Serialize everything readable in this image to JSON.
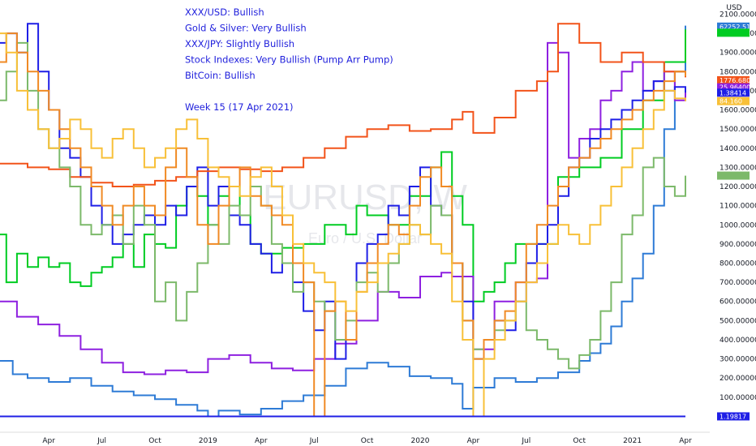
{
  "chart_data": {
    "type": "line",
    "title": "",
    "xlabel": "",
    "ylabel": "",
    "currency": "USD",
    "watermark": {
      "main": "EURUSD, W",
      "sub": "Euro / U.S. Dollar"
    },
    "ylim": [
      -70,
      2140
    ],
    "yticks": [
      "2100.00000",
      "2000.000000",
      "1900.000000",
      "1800.000000",
      "1700.000000",
      "1600.000000",
      "1500.000000",
      "1400.000000",
      "1300.000000",
      "1200.000000",
      "1100.000000",
      "1000.000000",
      "900.000000",
      "800.000000",
      "700.000000",
      "600.000000",
      "500.000000",
      "400.000000",
      "300.000000",
      "200.000000",
      "100.000000"
    ],
    "ytick_values": [
      2100,
      2000,
      1900,
      1800,
      1700,
      1600,
      1500,
      1400,
      1300,
      1200,
      1100,
      1000,
      900,
      800,
      700,
      600,
      500,
      400,
      300,
      200,
      100
    ],
    "xticks": [
      {
        "label": "Apr",
        "t": 0.5
      },
      {
        "label": "Jul",
        "t": 0.75
      },
      {
        "label": "Oct",
        "t": 1.0
      },
      {
        "label": "2019",
        "t": 1.25
      },
      {
        "label": "Apr",
        "t": 1.5
      },
      {
        "label": "Jul",
        "t": 1.75
      },
      {
        "label": "Oct",
        "t": 2.0
      },
      {
        "label": "2020",
        "t": 2.25
      },
      {
        "label": "Apr",
        "t": 2.5
      },
      {
        "label": "Jul",
        "t": 2.75
      },
      {
        "label": "Oct",
        "t": 3.0
      },
      {
        "label": "2021",
        "t": 3.25
      },
      {
        "label": "Apr",
        "t": 3.5
      }
    ],
    "xlim": [
      0.27,
      3.5
    ],
    "annotations": [
      "XXX/USD: Bullish",
      "Gold & Silver: Very Bullish",
      "XXX/JPY: Slightly Bullish",
      "Stock Indexes:  Very Bullish (Pump Arr Pump)",
      "BitCoin: Bullish",
      "",
      "Week 15 (17 Apr 2021)"
    ],
    "price_badges": [
      {
        "label": "62252.51",
        "color": "#2e7bd6",
        "value": 2035
      },
      {
        "label": "",
        "color": "#00cc22",
        "value": 2003
      },
      {
        "label": "1776.68000",
        "color": "#f2531a",
        "value": 1755
      },
      {
        "label": "25.96400",
        "color": "#8e20e0",
        "value": 1718
      },
      {
        "label": "1.38414",
        "color": "#1f1fe6",
        "value": 1690
      },
      {
        "label": "84.160",
        "color": "#f8c038",
        "value": 1646
      },
      {
        "label": "",
        "color": "#7cb96a",
        "value": 1257
      },
      {
        "label": "1.19817",
        "color": "#1f1fe6",
        "value": 0
      }
    ],
    "series": [
      {
        "color": "#2e7bd6",
        "x": [
          0.27,
          0.33,
          0.4,
          0.5,
          0.6,
          0.7,
          0.8,
          0.9,
          1.0,
          1.1,
          1.2,
          1.25,
          1.3,
          1.4,
          1.5,
          1.6,
          1.7,
          1.8,
          1.9,
          2.0,
          2.1,
          2.2,
          2.3,
          2.4,
          2.45,
          2.5,
          2.6,
          2.7,
          2.8,
          2.9,
          3.0,
          3.05,
          3.1,
          3.15,
          3.2,
          3.25,
          3.3,
          3.35,
          3.4,
          3.45,
          3.5
        ],
        "y": [
          290,
          220,
          200,
          180,
          200,
          160,
          130,
          110,
          90,
          60,
          30,
          0,
          30,
          10,
          40,
          80,
          110,
          160,
          250,
          280,
          260,
          210,
          200,
          170,
          40,
          150,
          200,
          180,
          200,
          230,
          290,
          330,
          380,
          470,
          600,
          720,
          850,
          1100,
          1500,
          1800,
          2040
        ]
      },
      {
        "color": "#00cc22",
        "x": [
          0.27,
          0.3,
          0.35,
          0.4,
          0.45,
          0.5,
          0.55,
          0.6,
          0.65,
          0.7,
          0.75,
          0.8,
          0.85,
          0.9,
          0.95,
          1.0,
          1.05,
          1.1,
          1.15,
          1.2,
          1.25,
          1.3,
          1.35,
          1.4,
          1.45,
          1.5,
          1.6,
          1.7,
          1.8,
          1.9,
          1.95,
          2.0,
          2.1,
          2.2,
          2.3,
          2.35,
          2.4,
          2.45,
          2.5,
          2.55,
          2.6,
          2.65,
          2.7,
          2.8,
          2.9,
          3.0,
          3.1,
          3.2,
          3.3,
          3.4,
          3.5
        ],
        "y": [
          950,
          700,
          850,
          780,
          830,
          780,
          800,
          700,
          680,
          750,
          780,
          830,
          900,
          780,
          950,
          900,
          880,
          1100,
          1200,
          1150,
          1000,
          1150,
          1200,
          1050,
          900,
          850,
          880,
          900,
          1000,
          950,
          1100,
          1050,
          1000,
          1150,
          1300,
          1380,
          1150,
          1000,
          600,
          650,
          700,
          800,
          900,
          900,
          1250,
          1300,
          1350,
          1500,
          1650,
          1850,
          2020
        ]
      },
      {
        "color": "#8e20e0",
        "x": [
          0.27,
          0.35,
          0.45,
          0.55,
          0.65,
          0.75,
          0.85,
          0.95,
          1.05,
          1.15,
          1.25,
          1.35,
          1.45,
          1.55,
          1.65,
          1.75,
          1.85,
          1.95,
          2.05,
          2.15,
          2.25,
          2.35,
          2.4,
          2.5,
          2.6,
          2.7,
          2.8,
          2.85,
          2.9,
          2.95,
          3.0,
          3.05,
          3.1,
          3.15,
          3.2,
          3.25,
          3.3,
          3.35,
          3.4,
          3.45,
          3.5
        ],
        "y": [
          600,
          520,
          480,
          420,
          350,
          280,
          230,
          220,
          240,
          230,
          300,
          320,
          280,
          250,
          240,
          300,
          380,
          500,
          650,
          620,
          730,
          750,
          730,
          350,
          600,
          700,
          720,
          1950,
          1900,
          1350,
          1450,
          1500,
          1650,
          1700,
          1800,
          1850,
          1700,
          1750,
          1800,
          1650,
          1700
        ]
      },
      {
        "color": "#1f1fe6",
        "x": [
          0.27,
          0.3,
          0.35,
          0.4,
          0.45,
          0.5,
          0.55,
          0.6,
          0.65,
          0.7,
          0.75,
          0.8,
          0.85,
          0.9,
          0.95,
          1.0,
          1.05,
          1.1,
          1.15,
          1.2,
          1.25,
          1.3,
          1.35,
          1.4,
          1.45,
          1.5,
          1.55,
          1.6,
          1.65,
          1.7,
          1.75,
          1.8,
          1.85,
          1.9,
          1.95,
          2.0,
          2.05,
          2.1,
          2.15,
          2.2,
          2.25,
          2.3,
          2.35,
          2.4,
          2.45,
          2.5,
          2.55,
          2.6,
          2.65,
          2.7,
          2.75,
          2.8,
          2.85,
          2.9,
          2.95,
          3.0,
          3.05,
          3.1,
          3.15,
          3.2,
          3.25,
          3.3,
          3.35,
          3.4,
          3.45,
          3.5
        ],
        "y": [
          1950,
          2000,
          1900,
          2050,
          1800,
          1600,
          1400,
          1350,
          1250,
          1100,
          1000,
          900,
          950,
          1000,
          1050,
          1000,
          1100,
          1050,
          1200,
          1300,
          1100,
          1200,
          1050,
          1000,
          900,
          850,
          750,
          800,
          700,
          550,
          450,
          600,
          300,
          400,
          800,
          900,
          950,
          1100,
          1050,
          1200,
          1300,
          1100,
          1050,
          800,
          600,
          300,
          400,
          500,
          450,
          600,
          800,
          900,
          1000,
          1150,
          1300,
          1350,
          1450,
          1500,
          1550,
          1600,
          1650,
          1700,
          1750,
          1700,
          1720,
          1690
        ]
      },
      {
        "color": "#f2531a",
        "x": [
          0.27,
          0.4,
          0.5,
          0.6,
          0.7,
          0.8,
          0.9,
          1.0,
          1.1,
          1.2,
          1.3,
          1.4,
          1.5,
          1.6,
          1.7,
          1.8,
          1.9,
          2.0,
          2.1,
          2.2,
          2.3,
          2.4,
          2.45,
          2.5,
          2.6,
          2.7,
          2.8,
          2.85,
          2.9,
          3.0,
          3.1,
          3.2,
          3.3,
          3.4,
          3.5
        ],
        "y": [
          1320,
          1300,
          1290,
          1250,
          1220,
          1200,
          1210,
          1230,
          1250,
          1280,
          1300,
          1290,
          1280,
          1300,
          1350,
          1400,
          1460,
          1500,
          1520,
          1490,
          1500,
          1550,
          1590,
          1480,
          1560,
          1700,
          1750,
          1800,
          2050,
          1950,
          1850,
          1900,
          1850,
          1800,
          1770
        ]
      },
      {
        "color": "#7cb96a",
        "x": [
          0.27,
          0.3,
          0.35,
          0.4,
          0.45,
          0.5,
          0.55,
          0.6,
          0.65,
          0.7,
          0.75,
          0.8,
          0.85,
          0.9,
          0.95,
          1.0,
          1.05,
          1.1,
          1.15,
          1.2,
          1.25,
          1.3,
          1.35,
          1.4,
          1.45,
          1.5,
          1.55,
          1.6,
          1.65,
          1.7,
          1.75,
          1.8,
          1.85,
          1.9,
          1.95,
          2.0,
          2.05,
          2.1,
          2.15,
          2.2,
          2.25,
          2.3,
          2.35,
          2.4,
          2.45,
          2.5,
          2.55,
          2.6,
          2.65,
          2.7,
          2.75,
          2.8,
          2.85,
          2.9,
          2.95,
          3.0,
          3.05,
          3.1,
          3.15,
          3.2,
          3.25,
          3.3,
          3.35,
          3.4,
          3.45,
          3.5
        ],
        "y": [
          1650,
          1800,
          1950,
          1700,
          1500,
          1400,
          1300,
          1200,
          1000,
          950,
          1000,
          1050,
          900,
          1100,
          1000,
          600,
          700,
          500,
          650,
          800,
          1000,
          900,
          1100,
          1050,
          1200,
          1100,
          900,
          800,
          650,
          700,
          600,
          550,
          400,
          500,
          700,
          750,
          650,
          800,
          900,
          1000,
          950,
          1100,
          1050,
          800,
          500,
          350,
          400,
          450,
          500,
          600,
          450,
          400,
          350,
          300,
          250,
          320,
          400,
          550,
          700,
          950,
          1050,
          1300,
          1350,
          1200,
          1150,
          1257
        ]
      },
      {
        "color": "#f08a24",
        "x": [
          0.27,
          0.3,
          0.35,
          0.4,
          0.45,
          0.5,
          0.55,
          0.6,
          0.65,
          0.7,
          0.75,
          0.8,
          0.85,
          0.9,
          0.95,
          1.0,
          1.05,
          1.1,
          1.15,
          1.2,
          1.25,
          1.3,
          1.35,
          1.4,
          1.45,
          1.5,
          1.55,
          1.6,
          1.65,
          1.7,
          1.75,
          1.8,
          1.85,
          1.9,
          1.95,
          2.0,
          2.05,
          2.1,
          2.15,
          2.2,
          2.25,
          2.3,
          2.35,
          2.4,
          2.45,
          2.5,
          2.55,
          2.6,
          2.65,
          2.7,
          2.75,
          2.8,
          2.85,
          2.9,
          2.95,
          3.0,
          3.05,
          3.1,
          3.15,
          3.2,
          3.25,
          3.3,
          3.35,
          3.4,
          3.45,
          3.5
        ],
        "y": [
          1850,
          2000,
          1900,
          1800,
          1700,
          1600,
          1500,
          1400,
          1300,
          1200,
          1100,
          1000,
          1100,
          1200,
          1100,
          1050,
          1300,
          1400,
          1250,
          1000,
          900,
          1100,
          1200,
          1300,
          1150,
          1100,
          1050,
          1000,
          800,
          700,
          0,
          550,
          600,
          400,
          650,
          800,
          900,
          1000,
          950,
          1100,
          1250,
          1300,
          1200,
          800,
          500,
          300,
          400,
          500,
          550,
          700,
          900,
          1000,
          1100,
          1200,
          1300,
          1350,
          1400,
          1450,
          1500,
          1550,
          1600,
          1650,
          1700,
          1750,
          1800,
          1776
        ]
      },
      {
        "color": "#f8c038",
        "x": [
          0.27,
          0.3,
          0.35,
          0.4,
          0.45,
          0.5,
          0.55,
          0.6,
          0.65,
          0.7,
          0.75,
          0.8,
          0.85,
          0.9,
          0.95,
          1.0,
          1.05,
          1.1,
          1.15,
          1.2,
          1.25,
          1.3,
          1.35,
          1.4,
          1.45,
          1.5,
          1.55,
          1.6,
          1.65,
          1.7,
          1.75,
          1.8,
          1.85,
          1.9,
          1.95,
          2.0,
          2.05,
          2.1,
          2.15,
          2.2,
          2.25,
          2.3,
          2.35,
          2.4,
          2.45,
          2.5,
          2.55,
          2.6,
          2.65,
          2.7,
          2.75,
          2.8,
          2.85,
          2.9,
          2.95,
          3.0,
          3.05,
          3.1,
          3.15,
          3.2,
          3.25,
          3.3,
          3.35,
          3.4,
          3.45,
          3.5
        ],
        "y": [
          2000,
          1900,
          1700,
          1600,
          1500,
          1400,
          1450,
          1550,
          1500,
          1400,
          1350,
          1450,
          1500,
          1400,
          1300,
          1350,
          1400,
          1500,
          1550,
          1450,
          1300,
          1250,
          1200,
          1150,
          1250,
          1300,
          1200,
          1050,
          900,
          800,
          750,
          700,
          600,
          550,
          650,
          700,
          800,
          850,
          900,
          1000,
          950,
          900,
          850,
          600,
          400,
          0,
          300,
          400,
          500,
          600,
          700,
          800,
          900,
          1000,
          950,
          900,
          1000,
          1100,
          1200,
          1300,
          1400,
          1500,
          1600,
          1700,
          1660,
          1646
        ]
      }
    ]
  }
}
